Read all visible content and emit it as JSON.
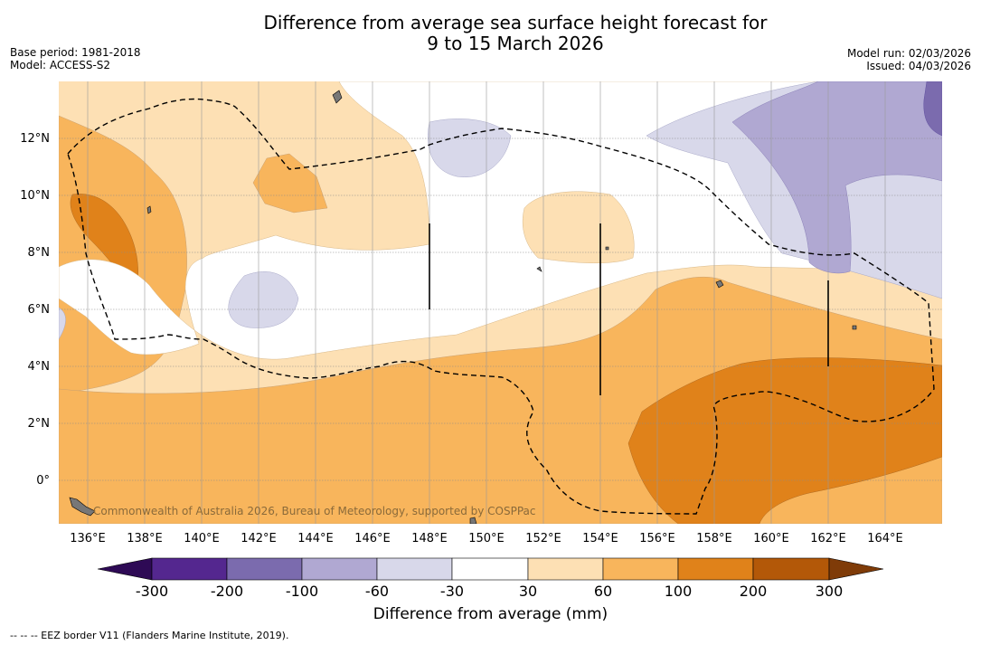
{
  "header": {
    "title_line1": "Difference from average sea surface height forecast for",
    "title_line2": "9 to 15 March 2026",
    "base_period": "Base period: 1981-2018",
    "model": "Model: ACCESS-S2",
    "model_run": "Model run: 02/03/2026",
    "issued": "Issued: 04/03/2026"
  },
  "map": {
    "lat_labels": [
      "12°N",
      "10°N",
      "8°N",
      "6°N",
      "4°N",
      "2°N",
      "0°"
    ],
    "lon_labels": [
      "136°E",
      "138°E",
      "140°E",
      "142°E",
      "144°E",
      "146°E",
      "148°E",
      "150°E",
      "152°E",
      "154°E",
      "156°E",
      "158°E",
      "160°E",
      "162°E",
      "164°E"
    ],
    "copyright": "Commonwealth of Australia 2026, Bureau of Meteorology, supported by COSPPac"
  },
  "colorbar": {
    "tick_labels": [
      "-300",
      "-200",
      "-100",
      "-60",
      "-30",
      "30",
      "60",
      "100",
      "200",
      "300"
    ],
    "colors": [
      "#2e0a55",
      "#54278f",
      "#7b6bae",
      "#b0a8d2",
      "#d8d8ea",
      "#ffffff",
      "#fde0b4",
      "#f8b55c",
      "#e0821a",
      "#b35808",
      "#7f3b08"
    ],
    "label": "Difference from average (mm)"
  },
  "footer": {
    "legend": "--  --  -- EEZ border V11 (Flanders Marine Institute, 2019)."
  }
}
